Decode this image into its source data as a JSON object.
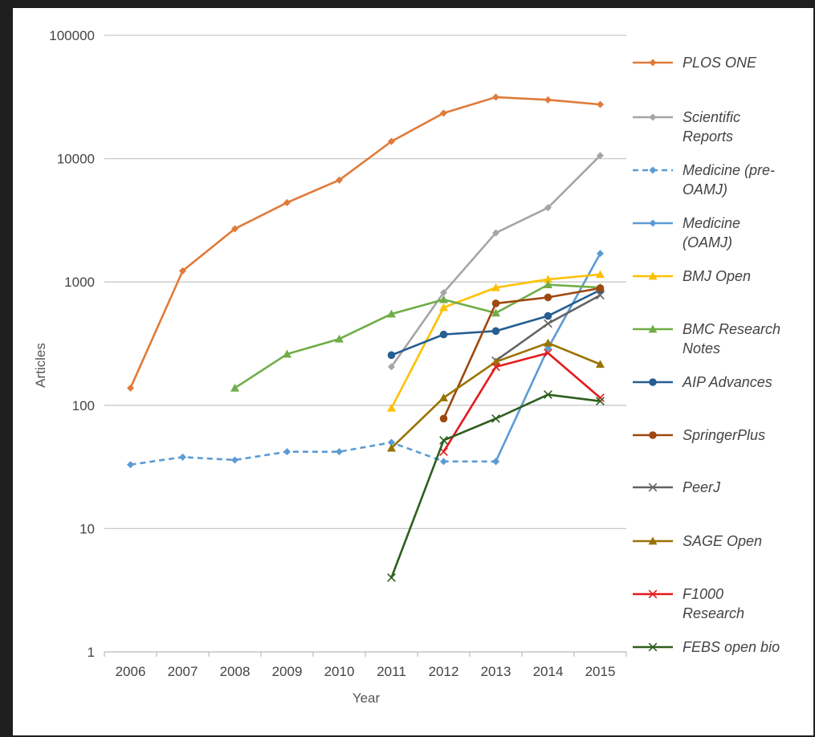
{
  "chart_data": {
    "type": "line",
    "title": "",
    "xlabel": "Year",
    "ylabel": "Articles",
    "yscale": "log",
    "ylim": [
      1,
      100000
    ],
    "yticks": [
      "1",
      "10",
      "100",
      "1000",
      "10000",
      "100000"
    ],
    "categories": [
      "2006",
      "2007",
      "2008",
      "2009",
      "2010",
      "2011",
      "2012",
      "2013",
      "2014",
      "2015"
    ],
    "grid": "horizontal",
    "legend": "right",
    "series": [
      {
        "name": "PLOS ONE",
        "lines": [
          "PLOS ONE"
        ],
        "color": "#e07b39",
        "marker": "diamond",
        "dash": false,
        "values": [
          138,
          1230,
          2700,
          4400,
          6700,
          13800,
          23400,
          31500,
          30000,
          27500
        ]
      },
      {
        "name": "Scientific Reports",
        "lines": [
          "Scientific",
          "Reports"
        ],
        "color": "#a5a5a5",
        "marker": "diamond",
        "dash": false,
        "values": [
          null,
          null,
          null,
          null,
          null,
          205,
          820,
          2500,
          4000,
          10600
        ]
      },
      {
        "name": "Medicine (pre-OAMJ)",
        "lines": [
          "Medicine (pre-",
          "OAMJ)"
        ],
        "color": "#5b9bd5",
        "marker": "diamond",
        "dash": true,
        "values": [
          33,
          38,
          36,
          42,
          42,
          50,
          35,
          35,
          null,
          null
        ]
      },
      {
        "name": "Medicine (OAMJ)",
        "lines": [
          "Medicine",
          "(OAMJ)"
        ],
        "color": "#5b9bd5",
        "marker": "diamond",
        "dash": false,
        "values": [
          null,
          null,
          null,
          null,
          null,
          null,
          null,
          35,
          290,
          1700
        ]
      },
      {
        "name": "BMJ Open",
        "lines": [
          "BMJ Open"
        ],
        "color": "#ffc000",
        "marker": "triangle",
        "dash": false,
        "values": [
          null,
          null,
          null,
          null,
          null,
          95,
          620,
          900,
          1050,
          1150
        ]
      },
      {
        "name": "BMC Research Notes",
        "lines": [
          "BMC Research",
          "Notes"
        ],
        "color": "#70ad47",
        "marker": "triangle",
        "dash": false,
        "values": [
          null,
          null,
          138,
          260,
          345,
          550,
          720,
          560,
          950,
          900
        ]
      },
      {
        "name": "AIP Advances",
        "lines": [
          "AIP Advances"
        ],
        "color": "#255e91",
        "marker": "circle",
        "dash": false,
        "values": [
          null,
          null,
          null,
          null,
          null,
          255,
          375,
          400,
          530,
          860
        ]
      },
      {
        "name": "SpringerPlus",
        "lines": [
          "SpringerPlus"
        ],
        "color": "#9e480e",
        "marker": "circle",
        "dash": false,
        "values": [
          null,
          null,
          null,
          null,
          null,
          null,
          78,
          670,
          750,
          890
        ]
      },
      {
        "name": "PeerJ",
        "lines": [
          "PeerJ"
        ],
        "color": "#636363",
        "marker": "x",
        "dash": false,
        "values": [
          null,
          null,
          null,
          null,
          null,
          null,
          null,
          230,
          460,
          780
        ]
      },
      {
        "name": "SAGE Open",
        "lines": [
          "SAGE Open"
        ],
        "color": "#997300",
        "marker": "triangle",
        "dash": false,
        "values": [
          null,
          null,
          null,
          null,
          null,
          45,
          115,
          225,
          320,
          215
        ]
      },
      {
        "name": "F1000 Research",
        "lines": [
          "F1000",
          "Research"
        ],
        "color": "#e41a1c",
        "marker": "x",
        "dash": false,
        "values": [
          null,
          null,
          null,
          null,
          null,
          null,
          42,
          205,
          265,
          115
        ]
      },
      {
        "name": "FEBS open bio",
        "lines": [
          "FEBS open bio"
        ],
        "color": "#2e5e1e",
        "marker": "x",
        "dash": false,
        "values": [
          null,
          null,
          null,
          null,
          null,
          4,
          52,
          78,
          122,
          108
        ]
      }
    ]
  }
}
